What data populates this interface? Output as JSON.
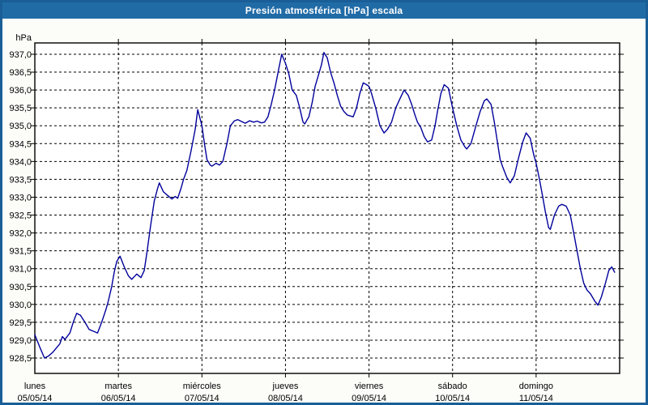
{
  "window": {
    "title": "Presión atmosférica [hPa] escala"
  },
  "colors": {
    "titlebar_blue": "#206ba6",
    "border_blue": "#1a5e97",
    "line_navy": "#00009c",
    "plot_bg": "#ffffff",
    "panel_bg": "#fcfcf9",
    "grid_black": "#000000"
  },
  "chart_data": {
    "type": "line",
    "title": "Presión atmosférica [hPa] escala",
    "unit_label": "hPa",
    "ylim": [
      928.5,
      937.0
    ],
    "y_tick_step": 0.5,
    "y_tick_labels": [
      "937,0",
      "936,5",
      "936,0",
      "935,5",
      "935,0",
      "934,5",
      "934,0",
      "933,5",
      "933,0",
      "932,5",
      "932,0",
      "931,5",
      "931,0",
      "930,5",
      "930,0",
      "929,5",
      "929,0",
      "928,5"
    ],
    "x_days": [
      {
        "name": "lunes",
        "date": "05/05/14"
      },
      {
        "name": "martes",
        "date": "06/05/14"
      },
      {
        "name": "miércoles",
        "date": "07/05/14"
      },
      {
        "name": "jueves",
        "date": "08/05/14"
      },
      {
        "name": "viernes",
        "date": "09/05/14"
      },
      {
        "name": "sábado",
        "date": "10/05/14"
      },
      {
        "name": "domingo",
        "date": "11/05/14"
      }
    ],
    "grid": "dashed",
    "legend": "none",
    "series": [
      {
        "name": "Presión atmosférica",
        "points": [
          [
            0.0,
            929.15
          ],
          [
            0.06,
            928.8
          ],
          [
            0.115,
            928.5
          ],
          [
            0.16,
            928.55
          ],
          [
            0.21,
            928.65
          ],
          [
            0.3,
            928.9
          ],
          [
            0.33,
            929.1
          ],
          [
            0.36,
            929.02
          ],
          [
            0.42,
            929.2
          ],
          [
            0.46,
            929.5
          ],
          [
            0.5,
            929.75
          ],
          [
            0.545,
            929.7
          ],
          [
            0.6,
            929.5
          ],
          [
            0.65,
            929.3
          ],
          [
            0.7,
            929.25
          ],
          [
            0.75,
            929.2
          ],
          [
            0.8,
            929.5
          ],
          [
            0.85,
            929.85
          ],
          [
            0.88,
            930.1
          ],
          [
            0.92,
            930.5
          ],
          [
            0.95,
            930.9
          ],
          [
            0.98,
            931.2
          ],
          [
            1.02,
            931.35
          ],
          [
            1.07,
            931.05
          ],
          [
            1.12,
            930.8
          ],
          [
            1.16,
            930.7
          ],
          [
            1.22,
            930.85
          ],
          [
            1.27,
            930.75
          ],
          [
            1.31,
            930.95
          ],
          [
            1.345,
            931.5
          ],
          [
            1.385,
            932.2
          ],
          [
            1.43,
            932.9
          ],
          [
            1.47,
            933.25
          ],
          [
            1.49,
            933.4
          ],
          [
            1.54,
            933.15
          ],
          [
            1.59,
            933.05
          ],
          [
            1.64,
            932.95
          ],
          [
            1.68,
            933.02
          ],
          [
            1.71,
            932.97
          ],
          [
            1.75,
            933.25
          ],
          [
            1.78,
            933.5
          ],
          [
            1.82,
            933.75
          ],
          [
            1.87,
            934.3
          ],
          [
            1.92,
            934.9
          ],
          [
            1.95,
            935.45
          ],
          [
            2.0,
            935.0
          ],
          [
            2.03,
            934.5
          ],
          [
            2.06,
            934.05
          ],
          [
            2.1,
            933.9
          ],
          [
            2.12,
            933.87
          ],
          [
            2.17,
            933.95
          ],
          [
            2.21,
            933.9
          ],
          [
            2.25,
            934.0
          ],
          [
            2.3,
            934.5
          ],
          [
            2.34,
            935.0
          ],
          [
            2.39,
            935.14
          ],
          [
            2.43,
            935.17
          ],
          [
            2.49,
            935.1
          ],
          [
            2.52,
            935.07
          ],
          [
            2.57,
            935.14
          ],
          [
            2.62,
            935.1
          ],
          [
            2.66,
            935.13
          ],
          [
            2.71,
            935.08
          ],
          [
            2.75,
            935.1
          ],
          [
            2.79,
            935.25
          ],
          [
            2.83,
            935.6
          ],
          [
            2.87,
            936.0
          ],
          [
            2.92,
            936.6
          ],
          [
            2.955,
            937.0
          ],
          [
            3.0,
            936.75
          ],
          [
            3.04,
            936.45
          ],
          [
            3.08,
            936.0
          ],
          [
            3.13,
            935.85
          ],
          [
            3.17,
            935.5
          ],
          [
            3.21,
            935.1
          ],
          [
            3.23,
            935.05
          ],
          [
            3.28,
            935.25
          ],
          [
            3.32,
            935.65
          ],
          [
            3.355,
            936.1
          ],
          [
            3.38,
            936.3
          ],
          [
            3.43,
            936.7
          ],
          [
            3.46,
            937.05
          ],
          [
            3.5,
            936.9
          ],
          [
            3.54,
            936.5
          ],
          [
            3.58,
            936.2
          ],
          [
            3.62,
            935.85
          ],
          [
            3.66,
            935.55
          ],
          [
            3.7,
            935.4
          ],
          [
            3.74,
            935.3
          ],
          [
            3.78,
            935.27
          ],
          [
            3.81,
            935.25
          ],
          [
            3.85,
            935.5
          ],
          [
            3.89,
            935.9
          ],
          [
            3.93,
            936.2
          ],
          [
            3.97,
            936.15
          ],
          [
            4.0,
            936.1
          ],
          [
            4.03,
            935.9
          ],
          [
            4.08,
            935.5
          ],
          [
            4.13,
            935.0
          ],
          [
            4.18,
            934.8
          ],
          [
            4.22,
            934.9
          ],
          [
            4.27,
            935.1
          ],
          [
            4.32,
            935.5
          ],
          [
            4.37,
            935.75
          ],
          [
            4.42,
            936.0
          ],
          [
            4.47,
            935.85
          ],
          [
            4.51,
            935.6
          ],
          [
            4.55,
            935.3
          ],
          [
            4.58,
            935.1
          ],
          [
            4.62,
            934.95
          ],
          [
            4.66,
            934.7
          ],
          [
            4.7,
            934.55
          ],
          [
            4.75,
            934.6
          ],
          [
            4.79,
            935.0
          ],
          [
            4.82,
            935.4
          ],
          [
            4.86,
            935.9
          ],
          [
            4.9,
            936.15
          ],
          [
            4.95,
            936.05
          ],
          [
            5.0,
            935.5
          ],
          [
            5.05,
            935.0
          ],
          [
            5.1,
            934.6
          ],
          [
            5.15,
            934.4
          ],
          [
            5.17,
            934.35
          ],
          [
            5.22,
            934.5
          ],
          [
            5.28,
            935.0
          ],
          [
            5.33,
            935.4
          ],
          [
            5.38,
            935.7
          ],
          [
            5.41,
            935.75
          ],
          [
            5.46,
            935.6
          ],
          [
            5.5,
            935.1
          ],
          [
            5.54,
            934.5
          ],
          [
            5.57,
            934.05
          ],
          [
            5.6,
            933.85
          ],
          [
            5.65,
            933.55
          ],
          [
            5.69,
            933.4
          ],
          [
            5.74,
            933.6
          ],
          [
            5.79,
            934.1
          ],
          [
            5.84,
            934.55
          ],
          [
            5.88,
            934.8
          ],
          [
            5.93,
            934.65
          ],
          [
            5.97,
            934.2
          ],
          [
            6.0,
            933.95
          ],
          [
            6.04,
            933.5
          ],
          [
            6.08,
            933.0
          ],
          [
            6.11,
            932.6
          ],
          [
            6.15,
            932.15
          ],
          [
            6.17,
            932.1
          ],
          [
            6.22,
            932.5
          ],
          [
            6.27,
            932.75
          ],
          [
            6.31,
            932.8
          ],
          [
            6.36,
            932.75
          ],
          [
            6.41,
            932.5
          ],
          [
            6.45,
            932.0
          ],
          [
            6.49,
            931.5
          ],
          [
            6.53,
            931.0
          ],
          [
            6.57,
            930.6
          ],
          [
            6.61,
            930.4
          ],
          [
            6.65,
            930.3
          ],
          [
            6.7,
            930.1
          ],
          [
            6.74,
            929.98
          ],
          [
            6.78,
            930.2
          ],
          [
            6.83,
            930.6
          ],
          [
            6.87,
            930.95
          ],
          [
            6.905,
            931.05
          ],
          [
            6.94,
            930.9
          ]
        ]
      }
    ]
  }
}
